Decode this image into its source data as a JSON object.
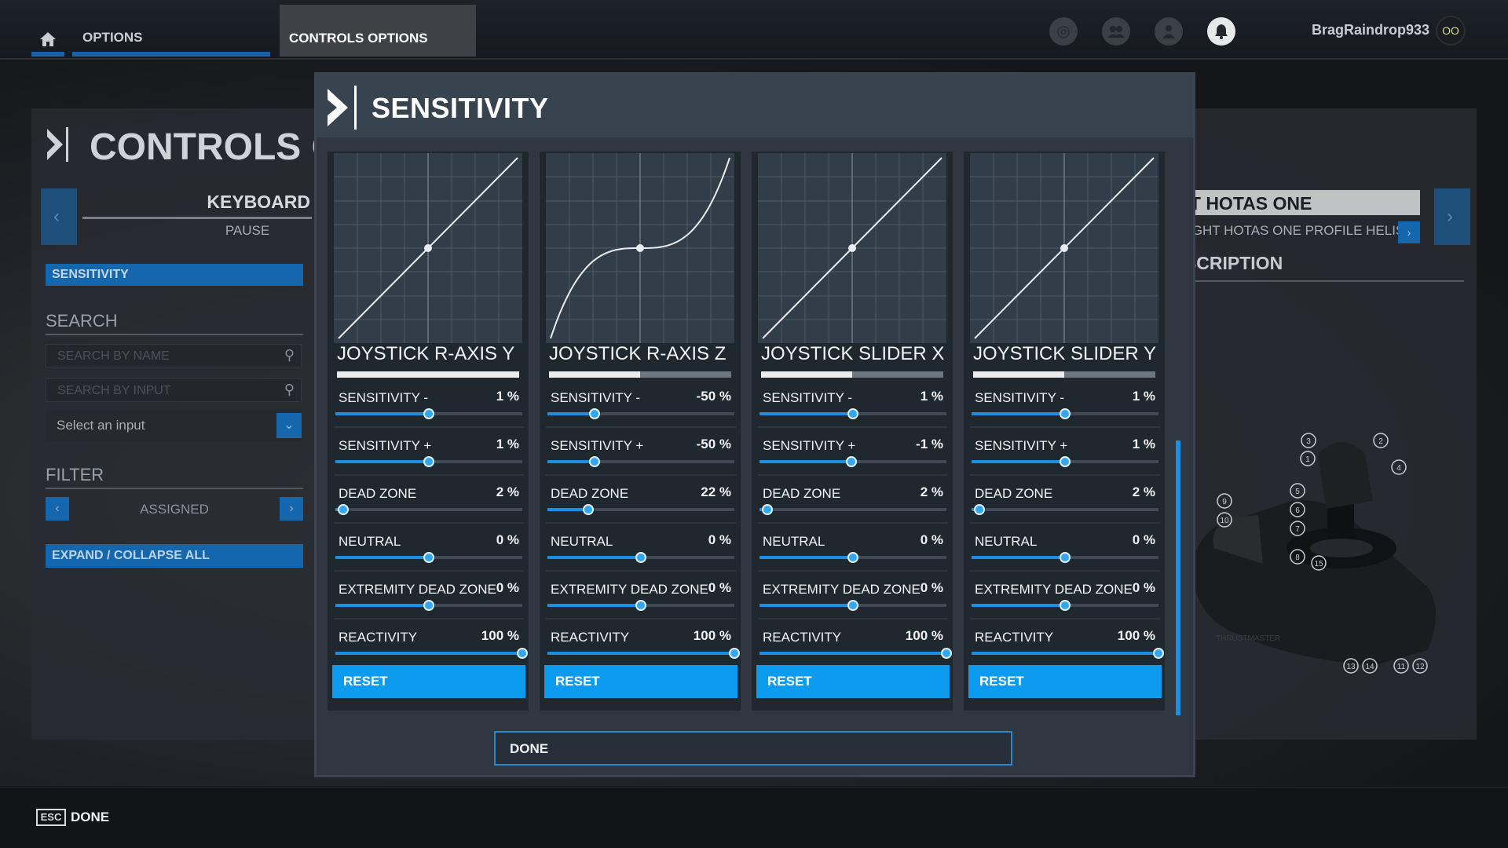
{
  "topbar": {
    "home_icon": "home-icon",
    "tab_options": "OPTIONS",
    "tab_controls": "CONTROLS OPTIONS",
    "icons": [
      "marketplace-icon",
      "friends-icon",
      "profile-icon",
      "notifications-icon"
    ],
    "username": "BragRaindrop933",
    "avatar_text": "OO"
  },
  "left_panel": {
    "title": "CONTROLS OPTIONS",
    "device": "KEYBOARD",
    "profile": "PAUSE",
    "sensitivity_button": "SENSITIVITY",
    "search_heading": "SEARCH",
    "search_name_placeholder": "SEARCH BY NAME",
    "search_input_placeholder": "SEARCH BY INPUT",
    "select_input": "Select an input",
    "filter_heading": "FILTER",
    "filter_value": "ASSIGNED",
    "expand_collapse": "EXPAND / COLLAPSE ALL"
  },
  "right_panel": {
    "device": "T.FLIGHT HOTAS ONE",
    "profile": "T.FLIGHT HOTAS ONE PROFILE HELIS",
    "description_heading": "DESCRIPTION",
    "diagram_labels": [
      "1",
      "2",
      "3",
      "4",
      "5",
      "6",
      "7",
      "8",
      "9",
      "10",
      "11",
      "12",
      "13",
      "14",
      "15"
    ]
  },
  "modal": {
    "title": "SENSITIVITY",
    "done_button": "DONE",
    "columns": [
      {
        "name": "JOYSTICK R-AXIS Y",
        "bar_fill": 1.0,
        "curve": "linear",
        "rows": [
          {
            "label": "SENSITIVITY -",
            "value": "1 %",
            "level": 0.5
          },
          {
            "label": "SENSITIVITY +",
            "value": "1 %",
            "level": 0.5
          },
          {
            "label": "DEAD ZONE",
            "value": "2 %",
            "level": 0.04
          },
          {
            "label": "NEUTRAL",
            "value": "0 %",
            "level": 0.5
          },
          {
            "label": "EXTREMITY DEAD ZONE",
            "value": "0 %",
            "level": 0.5
          },
          {
            "label": "REACTIVITY",
            "value": "100 %",
            "level": 1.0
          }
        ],
        "reset_label": "RESET"
      },
      {
        "name": "JOYSTICK R-AXIS Z",
        "bar_fill": 0.5,
        "curve": "cubic",
        "rows": [
          {
            "label": "SENSITIVITY -",
            "value": "-50 %",
            "level": 0.25
          },
          {
            "label": "SENSITIVITY +",
            "value": "-50 %",
            "level": 0.25
          },
          {
            "label": "DEAD ZONE",
            "value": "22 %",
            "level": 0.22
          },
          {
            "label": "NEUTRAL",
            "value": "0 %",
            "level": 0.5
          },
          {
            "label": "EXTREMITY DEAD ZONE",
            "value": "0 %",
            "level": 0.5
          },
          {
            "label": "REACTIVITY",
            "value": "100 %",
            "level": 1.0
          }
        ],
        "reset_label": "RESET"
      },
      {
        "name": "JOYSTICK SLIDER X",
        "bar_fill": 0.5,
        "curve": "linear",
        "rows": [
          {
            "label": "SENSITIVITY -",
            "value": "1 %",
            "level": 0.5
          },
          {
            "label": "SENSITIVITY +",
            "value": "-1 %",
            "level": 0.49
          },
          {
            "label": "DEAD ZONE",
            "value": "2 %",
            "level": 0.04
          },
          {
            "label": "NEUTRAL",
            "value": "0 %",
            "level": 0.5
          },
          {
            "label": "EXTREMITY DEAD ZONE",
            "value": "0 %",
            "level": 0.5
          },
          {
            "label": "REACTIVITY",
            "value": "100 %",
            "level": 1.0
          }
        ],
        "reset_label": "RESET"
      },
      {
        "name": "JOYSTICK SLIDER Y",
        "bar_fill": 0.5,
        "curve": "linear",
        "rows": [
          {
            "label": "SENSITIVITY -",
            "value": "1 %",
            "level": 0.5
          },
          {
            "label": "SENSITIVITY +",
            "value": "1 %",
            "level": 0.5
          },
          {
            "label": "DEAD ZONE",
            "value": "2 %",
            "level": 0.04
          },
          {
            "label": "NEUTRAL",
            "value": "0 %",
            "level": 0.5
          },
          {
            "label": "EXTREMITY DEAD ZONE",
            "value": "0 %",
            "level": 0.5
          },
          {
            "label": "REACTIVITY",
            "value": "100 %",
            "level": 1.0
          }
        ],
        "reset_label": "RESET"
      }
    ]
  },
  "bottombar": {
    "esc_key": "ESC",
    "done_label": "DONE"
  },
  "colors": {
    "accent": "#0c9bef",
    "slider_fill": "#1a8fe3",
    "panel_bg": "#2f3841",
    "column_bg": "#1f272f",
    "graph_bg": "#313d48"
  }
}
